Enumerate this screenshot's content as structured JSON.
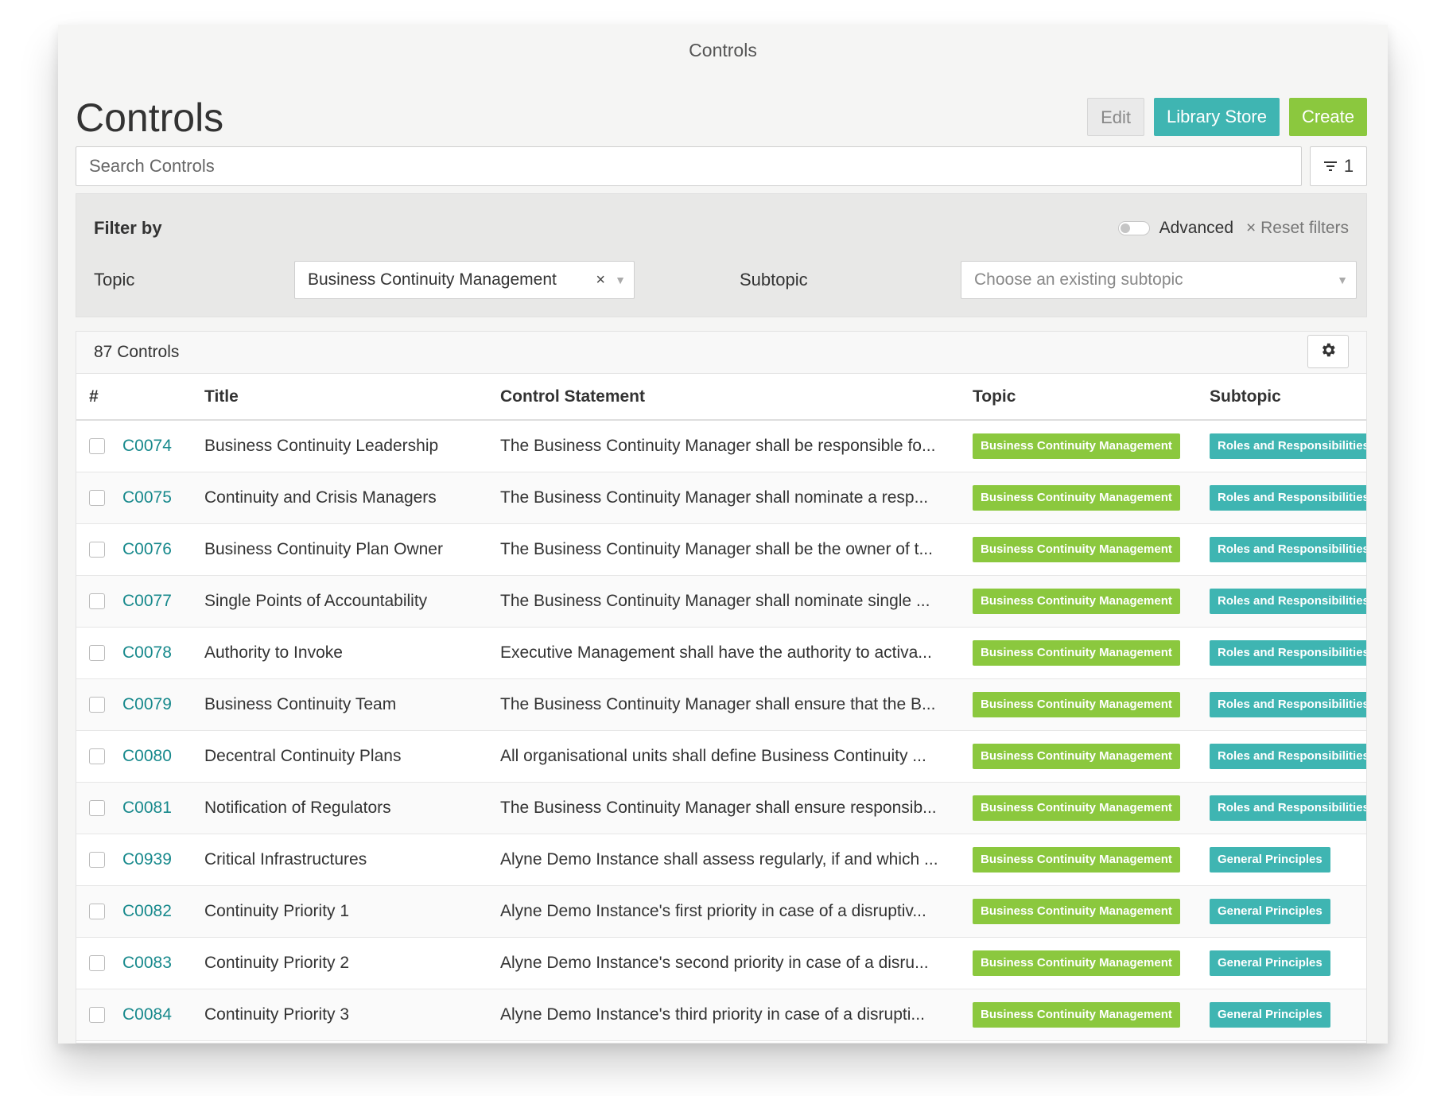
{
  "window": {
    "title": "Controls"
  },
  "header": {
    "title": "Controls",
    "edit_label": "Edit",
    "library_label": "Library Store",
    "create_label": "Create"
  },
  "search": {
    "placeholder": "Search Controls",
    "filter_count": "1"
  },
  "filters": {
    "heading": "Filter by",
    "advanced_label": "Advanced",
    "reset_label": "× Reset filters",
    "topic_label": "Topic",
    "topic_value": "Business Continuity Management",
    "subtopic_label": "Subtopic",
    "subtopic_placeholder": "Choose an existing subtopic"
  },
  "table": {
    "count_label": "87 Controls",
    "columns": [
      "#",
      "Title",
      "Control Statement",
      "Topic",
      "Subtopic"
    ],
    "rows": [
      {
        "id": "C0074",
        "title": "Business Continuity Leadership",
        "statement": "The Business Continuity Manager shall be responsible fo...",
        "topic": "Business Continuity Management",
        "subtopic": "Roles and Responsibilities"
      },
      {
        "id": "C0075",
        "title": "Continuity and Crisis Managers",
        "statement": "The Business Continuity Manager shall nominate a resp...",
        "topic": "Business Continuity Management",
        "subtopic": "Roles and Responsibilities"
      },
      {
        "id": "C0076",
        "title": "Business Continuity Plan Owner",
        "statement": "The Business Continuity Manager shall be the owner of t...",
        "topic": "Business Continuity Management",
        "subtopic": "Roles and Responsibilities"
      },
      {
        "id": "C0077",
        "title": "Single Points of Accountability",
        "statement": "The Business Continuity Manager shall nominate single ...",
        "topic": "Business Continuity Management",
        "subtopic": "Roles and Responsibilities"
      },
      {
        "id": "C0078",
        "title": "Authority to Invoke",
        "statement": "Executive Management shall have the authority to activa...",
        "topic": "Business Continuity Management",
        "subtopic": "Roles and Responsibilities"
      },
      {
        "id": "C0079",
        "title": "Business Continuity Team",
        "statement": "The Business Continuity Manager shall ensure that the B...",
        "topic": "Business Continuity Management",
        "subtopic": "Roles and Responsibilities"
      },
      {
        "id": "C0080",
        "title": "Decentral Continuity Plans",
        "statement": "All organisational units shall define Business Continuity ...",
        "topic": "Business Continuity Management",
        "subtopic": "Roles and Responsibilities"
      },
      {
        "id": "C0081",
        "title": "Notification of Regulators",
        "statement": "The Business Continuity Manager shall ensure responsib...",
        "topic": "Business Continuity Management",
        "subtopic": "Roles and Responsibilities"
      },
      {
        "id": "C0939",
        "title": "Critical Infrastructures",
        "statement": "Alyne Demo Instance shall assess regularly, if and which ...",
        "topic": "Business Continuity Management",
        "subtopic": "General Principles"
      },
      {
        "id": "C0082",
        "title": "Continuity Priority 1",
        "statement": "Alyne Demo Instance's first priority in case of a disruptiv...",
        "topic": "Business Continuity Management",
        "subtopic": "General Principles"
      },
      {
        "id": "C0083",
        "title": "Continuity Priority 2",
        "statement": "Alyne Demo Instance's second priority in case of a disru...",
        "topic": "Business Continuity Management",
        "subtopic": "General Principles"
      },
      {
        "id": "C0084",
        "title": "Continuity Priority 3",
        "statement": "Alyne Demo Instance's third priority in case of a disrupti...",
        "topic": "Business Continuity Management",
        "subtopic": "General Principles"
      }
    ]
  },
  "colors": {
    "teal": "#3fb5b2",
    "green": "#8bc83e",
    "link": "#17898c"
  }
}
